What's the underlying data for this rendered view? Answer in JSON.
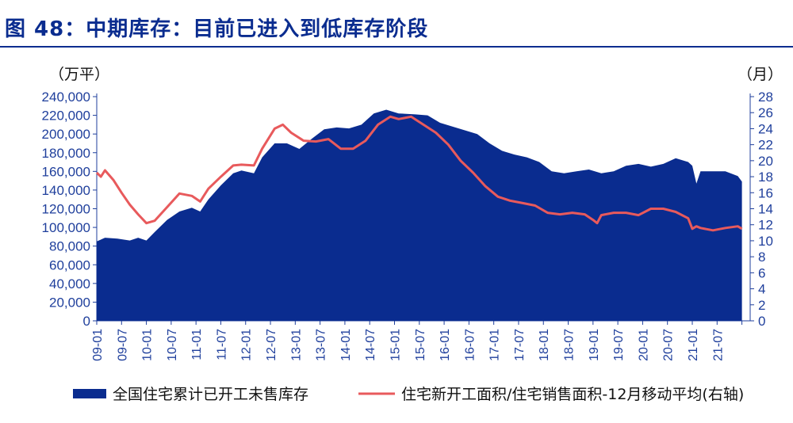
{
  "figure": {
    "title": "图 48：中期库存：目前已进入到低库存阶段"
  },
  "colors": {
    "title": "#0a2c8f",
    "axis_text": "#1f3f9c",
    "area": "#0a2c8f",
    "line": "#e85a5c"
  },
  "chart_data": {
    "type": "area",
    "x_unit": "month",
    "left_axis": {
      "unit_label": "（万平）",
      "range": [
        0,
        240000
      ],
      "ticks": [
        "0",
        "20,000",
        "40,000",
        "60,000",
        "80,000",
        "100,000",
        "120,000",
        "140,000",
        "160,000",
        "180,000",
        "200,000",
        "220,000",
        "240,000"
      ]
    },
    "right_axis": {
      "unit_label": "（月）",
      "range": [
        0,
        28
      ],
      "ticks": [
        "0",
        "2",
        "4",
        "6",
        "8",
        "10",
        "12",
        "14",
        "16",
        "18",
        "20",
        "22",
        "24",
        "26",
        "28"
      ]
    },
    "x_labels": [
      "09-01",
      "09-07",
      "10-01",
      "10-07",
      "11-01",
      "11-07",
      "12-01",
      "12-07",
      "13-01",
      "13-07",
      "14-01",
      "14-07",
      "15-01",
      "15-07",
      "16-01",
      "16-07",
      "17-01",
      "17-07",
      "18-01",
      "18-07",
      "19-01",
      "19-07",
      "20-01",
      "20-07",
      "21-01",
      "21-07"
    ],
    "series": [
      {
        "name": "全国住宅累计已开工未售库存",
        "type": "area",
        "axis": "left",
        "points": [
          [
            "2009-01",
            85000
          ],
          [
            "2009-03",
            89000
          ],
          [
            "2009-06",
            88000
          ],
          [
            "2009-09",
            86000
          ],
          [
            "2009-11",
            89000
          ],
          [
            "2010-01",
            86000
          ],
          [
            "2010-03",
            95000
          ],
          [
            "2010-06",
            108000
          ],
          [
            "2010-09",
            117000
          ],
          [
            "2010-12",
            121000
          ],
          [
            "2011-02",
            117000
          ],
          [
            "2011-04",
            130000
          ],
          [
            "2011-07",
            145000
          ],
          [
            "2011-10",
            158000
          ],
          [
            "2011-12",
            161000
          ],
          [
            "2012-03",
            158000
          ],
          [
            "2012-05",
            175000
          ],
          [
            "2012-08",
            190000
          ],
          [
            "2012-11",
            190000
          ],
          [
            "2013-02",
            184000
          ],
          [
            "2013-05",
            195000
          ],
          [
            "2013-08",
            205000
          ],
          [
            "2013-11",
            207000
          ],
          [
            "2014-02",
            206000
          ],
          [
            "2014-05",
            210000
          ],
          [
            "2014-08",
            222000
          ],
          [
            "2014-11",
            226000
          ],
          [
            "2015-02",
            222000
          ],
          [
            "2015-06",
            221000
          ],
          [
            "2015-09",
            220000
          ],
          [
            "2015-12",
            212000
          ],
          [
            "2016-03",
            208000
          ],
          [
            "2016-06",
            204000
          ],
          [
            "2016-09",
            200000
          ],
          [
            "2016-12",
            190000
          ],
          [
            "2017-03",
            182000
          ],
          [
            "2017-06",
            178000
          ],
          [
            "2017-09",
            175000
          ],
          [
            "2017-12",
            170000
          ],
          [
            "2018-03",
            160000
          ],
          [
            "2018-06",
            158000
          ],
          [
            "2018-09",
            160000
          ],
          [
            "2018-12",
            162000
          ],
          [
            "2019-03",
            158000
          ],
          [
            "2019-06",
            160000
          ],
          [
            "2019-09",
            166000
          ],
          [
            "2019-12",
            168000
          ],
          [
            "2020-03",
            165000
          ],
          [
            "2020-06",
            168000
          ],
          [
            "2020-09",
            174000
          ],
          [
            "2020-12",
            170000
          ],
          [
            "2021-01",
            166000
          ],
          [
            "2021-02",
            147000
          ],
          [
            "2021-03",
            160000
          ],
          [
            "2021-06",
            160000
          ],
          [
            "2021-09",
            160000
          ],
          [
            "2021-12",
            155000
          ],
          [
            "2022-01",
            149000
          ]
        ]
      },
      {
        "name": "住宅新开工面积/住宅销售面积-12月移动平均(右轴)",
        "type": "line",
        "axis": "right",
        "points": [
          [
            "2009-01",
            18.5
          ],
          [
            "2009-02",
            18.0
          ],
          [
            "2009-03",
            18.8
          ],
          [
            "2009-05",
            17.6
          ],
          [
            "2009-07",
            16.0
          ],
          [
            "2009-09",
            14.5
          ],
          [
            "2009-11",
            13.3
          ],
          [
            "2010-01",
            12.2
          ],
          [
            "2010-03",
            12.5
          ],
          [
            "2010-06",
            14.2
          ],
          [
            "2010-09",
            15.9
          ],
          [
            "2010-12",
            15.6
          ],
          [
            "2011-02",
            14.9
          ],
          [
            "2011-04",
            16.5
          ],
          [
            "2011-07",
            18.0
          ],
          [
            "2011-10",
            19.4
          ],
          [
            "2011-12",
            19.5
          ],
          [
            "2012-03",
            19.4
          ],
          [
            "2012-05",
            21.5
          ],
          [
            "2012-08",
            24.0
          ],
          [
            "2012-10",
            24.5
          ],
          [
            "2012-12",
            23.5
          ],
          [
            "2013-03",
            22.5
          ],
          [
            "2013-06",
            22.4
          ],
          [
            "2013-09",
            22.7
          ],
          [
            "2013-12",
            21.5
          ],
          [
            "2014-03",
            21.5
          ],
          [
            "2014-06",
            22.5
          ],
          [
            "2014-09",
            24.5
          ],
          [
            "2014-12",
            25.5
          ],
          [
            "2015-02",
            25.2
          ],
          [
            "2015-05",
            25.5
          ],
          [
            "2015-08",
            24.5
          ],
          [
            "2015-11",
            23.5
          ],
          [
            "2016-02",
            22.0
          ],
          [
            "2016-05",
            20.0
          ],
          [
            "2016-08",
            18.5
          ],
          [
            "2016-11",
            16.8
          ],
          [
            "2017-02",
            15.5
          ],
          [
            "2017-05",
            15.0
          ],
          [
            "2017-08",
            14.7
          ],
          [
            "2017-11",
            14.4
          ],
          [
            "2018-02",
            13.5
          ],
          [
            "2018-05",
            13.3
          ],
          [
            "2018-08",
            13.5
          ],
          [
            "2018-11",
            13.3
          ],
          [
            "2019-01",
            12.6
          ],
          [
            "2019-02",
            12.2
          ],
          [
            "2019-03",
            13.2
          ],
          [
            "2019-06",
            13.5
          ],
          [
            "2019-09",
            13.5
          ],
          [
            "2019-12",
            13.2
          ],
          [
            "2020-03",
            14.0
          ],
          [
            "2020-06",
            14.0
          ],
          [
            "2020-09",
            13.6
          ],
          [
            "2020-12",
            12.8
          ],
          [
            "2021-01",
            11.5
          ],
          [
            "2021-02",
            11.8
          ],
          [
            "2021-03",
            11.6
          ],
          [
            "2021-06",
            11.3
          ],
          [
            "2021-09",
            11.6
          ],
          [
            "2021-12",
            11.8
          ],
          [
            "2022-01",
            11.5
          ]
        ]
      }
    ],
    "legend": {
      "placement": "bottom",
      "items": [
        {
          "label": "全国住宅累计已开工未售库存",
          "swatch": "area"
        },
        {
          "label": "住宅新开工面积/住宅销售面积-12月移动平均(右轴)",
          "swatch": "line"
        }
      ]
    }
  }
}
